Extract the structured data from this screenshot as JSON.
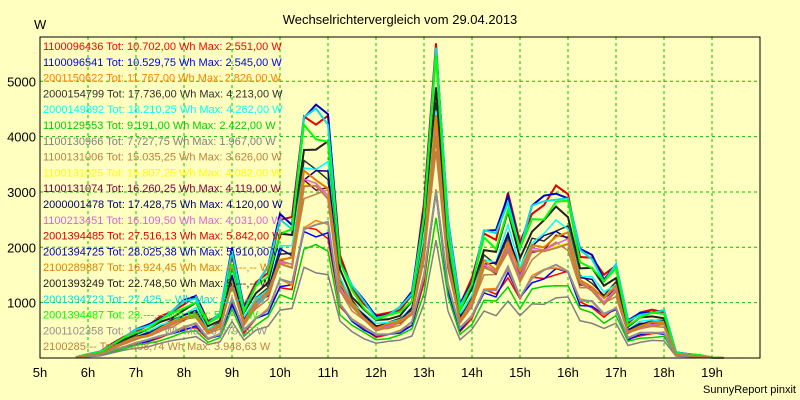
{
  "chart_data": {
    "type": "line",
    "title": "Wechselrichtervergleich vom 29.04.2013",
    "y_unit": "W",
    "footer": "SunnyReport pinxit",
    "grid": true,
    "xlim": [
      5,
      20
    ],
    "ylim": [
      0,
      5800
    ],
    "x_ticks": [
      "5h",
      "6h",
      "7h",
      "8h",
      "9h",
      "10h",
      "11h",
      "12h",
      "13h",
      "14h",
      "15h",
      "16h",
      "17h",
      "18h",
      "19h"
    ],
    "y_ticks": [
      1000,
      2000,
      3000,
      4000,
      5000
    ],
    "x": [
      5.75,
      6.0,
      6.25,
      6.5,
      6.75,
      7.0,
      7.25,
      7.5,
      7.75,
      8.0,
      8.25,
      8.5,
      8.75,
      9.0,
      9.25,
      9.5,
      9.75,
      10.0,
      10.25,
      10.5,
      10.75,
      11.0,
      11.25,
      11.5,
      11.75,
      12.0,
      12.25,
      12.5,
      12.75,
      13.0,
      13.25,
      13.5,
      13.75,
      14.0,
      14.25,
      14.5,
      14.75,
      15.0,
      15.25,
      15.5,
      15.75,
      16.0,
      16.25,
      16.5,
      16.75,
      17.0,
      17.25,
      17.5,
      17.75,
      18.0,
      18.25,
      18.5,
      18.75,
      19.0,
      19.25
    ],
    "series": [
      {
        "name": "1100096436 Tot: 10.702,00 Wh Max: 2.551,00 W",
        "color": "#ff0000",
        "scale": 0.52
      },
      {
        "name": "1100096541 Tot: 10.529,75 Wh Max: 2.545,00 W",
        "color": "#0000ff",
        "scale": 0.52
      },
      {
        "name": "2001150622 Tot: 11.767,00 Wh Max: 2.826,00 W",
        "color": "#ff8000",
        "scale": 0.55
      },
      {
        "name": "2000154799 Tot: 17.736,00 Wh Max: 4.213,00 W",
        "color": "#303030",
        "scale": 0.78
      },
      {
        "name": "2000149892 Tot: 18.210,25 Wh Max: 4.262,00 W",
        "color": "#00ffff",
        "scale": 0.8
      },
      {
        "name": "1100129553 Tot: 9.191,00 Wh Max: 2.422,00 W",
        "color": "#00d000",
        "scale": 0.45
      },
      {
        "name": "1100130966 Tot: 7.727,75 Wh Max: 1.967,00 W",
        "color": "#808080",
        "scale": 0.36
      },
      {
        "name": "1100131006 Tot: 15.035,25 Wh Max: 3.626,00 W",
        "color": "#c08040",
        "scale": 0.68
      },
      {
        "name": "1100131025 Tot: 15.807,25 Wh Max: 4.082,00 W",
        "color": "#ffff00",
        "scale": 0.7
      },
      {
        "name": "1100131074 Tot: 16.260,25 Wh Max: 4.119,00 W",
        "color": "#800040",
        "scale": 0.72
      },
      {
        "name": "2000001478 Tot: 17.428,75 Wh Max: 4.120,00 W",
        "color": "#000080",
        "scale": 0.76
      },
      {
        "name": "1100213451 Tot: 16.109,50 Wh Max: 4.031,00 W",
        "color": "#e060e0",
        "scale": 0.71
      },
      {
        "name": "2001394485 Tot: 27.516,13 Wh Max: 5.842,00 W",
        "color": "#e00000",
        "scale": 1.0
      },
      {
        "name": "2001394725 Tot: 28.025,38 Wh Max: 5.910,00 W",
        "color": "#0000c0",
        "scale": 1.01
      },
      {
        "name": "2100289887 Tot: 16.924,45 Wh Max: 4.---,-- W",
        "color": "#e08000",
        "scale": 0.74
      },
      {
        "name": "2001393249 Tot: 22.748,50 Wh Max: 5.---,-- W",
        "color": "#202020",
        "scale": 0.88
      },
      {
        "name": "2001394723 Tot: 27.425,-- Wh Max: 5.---,-- W",
        "color": "#00e0e0",
        "scale": 0.99
      },
      {
        "name": "2001394487 Tot: 23.---,-- Wh Max: 5.---,-- W",
        "color": "#00ff00",
        "scale": 0.93
      },
      {
        "name": "2001102358 Tot: 1-.---,-- Wh Max: 3.079,00 W",
        "color": "#909090",
        "scale": 0.55
      },
      {
        "name": "2100285--- Tot: --.408,74 Wh Max: 3.948,63 W",
        "color": "#c08040",
        "scale": 0.69
      }
    ],
    "base_profile": [
      15,
      70,
      110,
      250,
      380,
      500,
      580,
      720,
      850,
      1000,
      1100,
      650,
      800,
      1900,
      900,
      1350,
      1600,
      2500,
      2450,
      4400,
      4380,
      4300,
      1800,
      1300,
      1000,
      750,
      800,
      900,
      1150,
      2700,
      5700,
      2400,
      950,
      1400,
      2300,
      2200,
      2900,
      2050,
      2700,
      2800,
      3000,
      2950,
      1900,
      1800,
      1450,
      1700,
      650,
      800,
      850,
      850,
      100,
      70,
      50,
      10,
      0
    ]
  }
}
